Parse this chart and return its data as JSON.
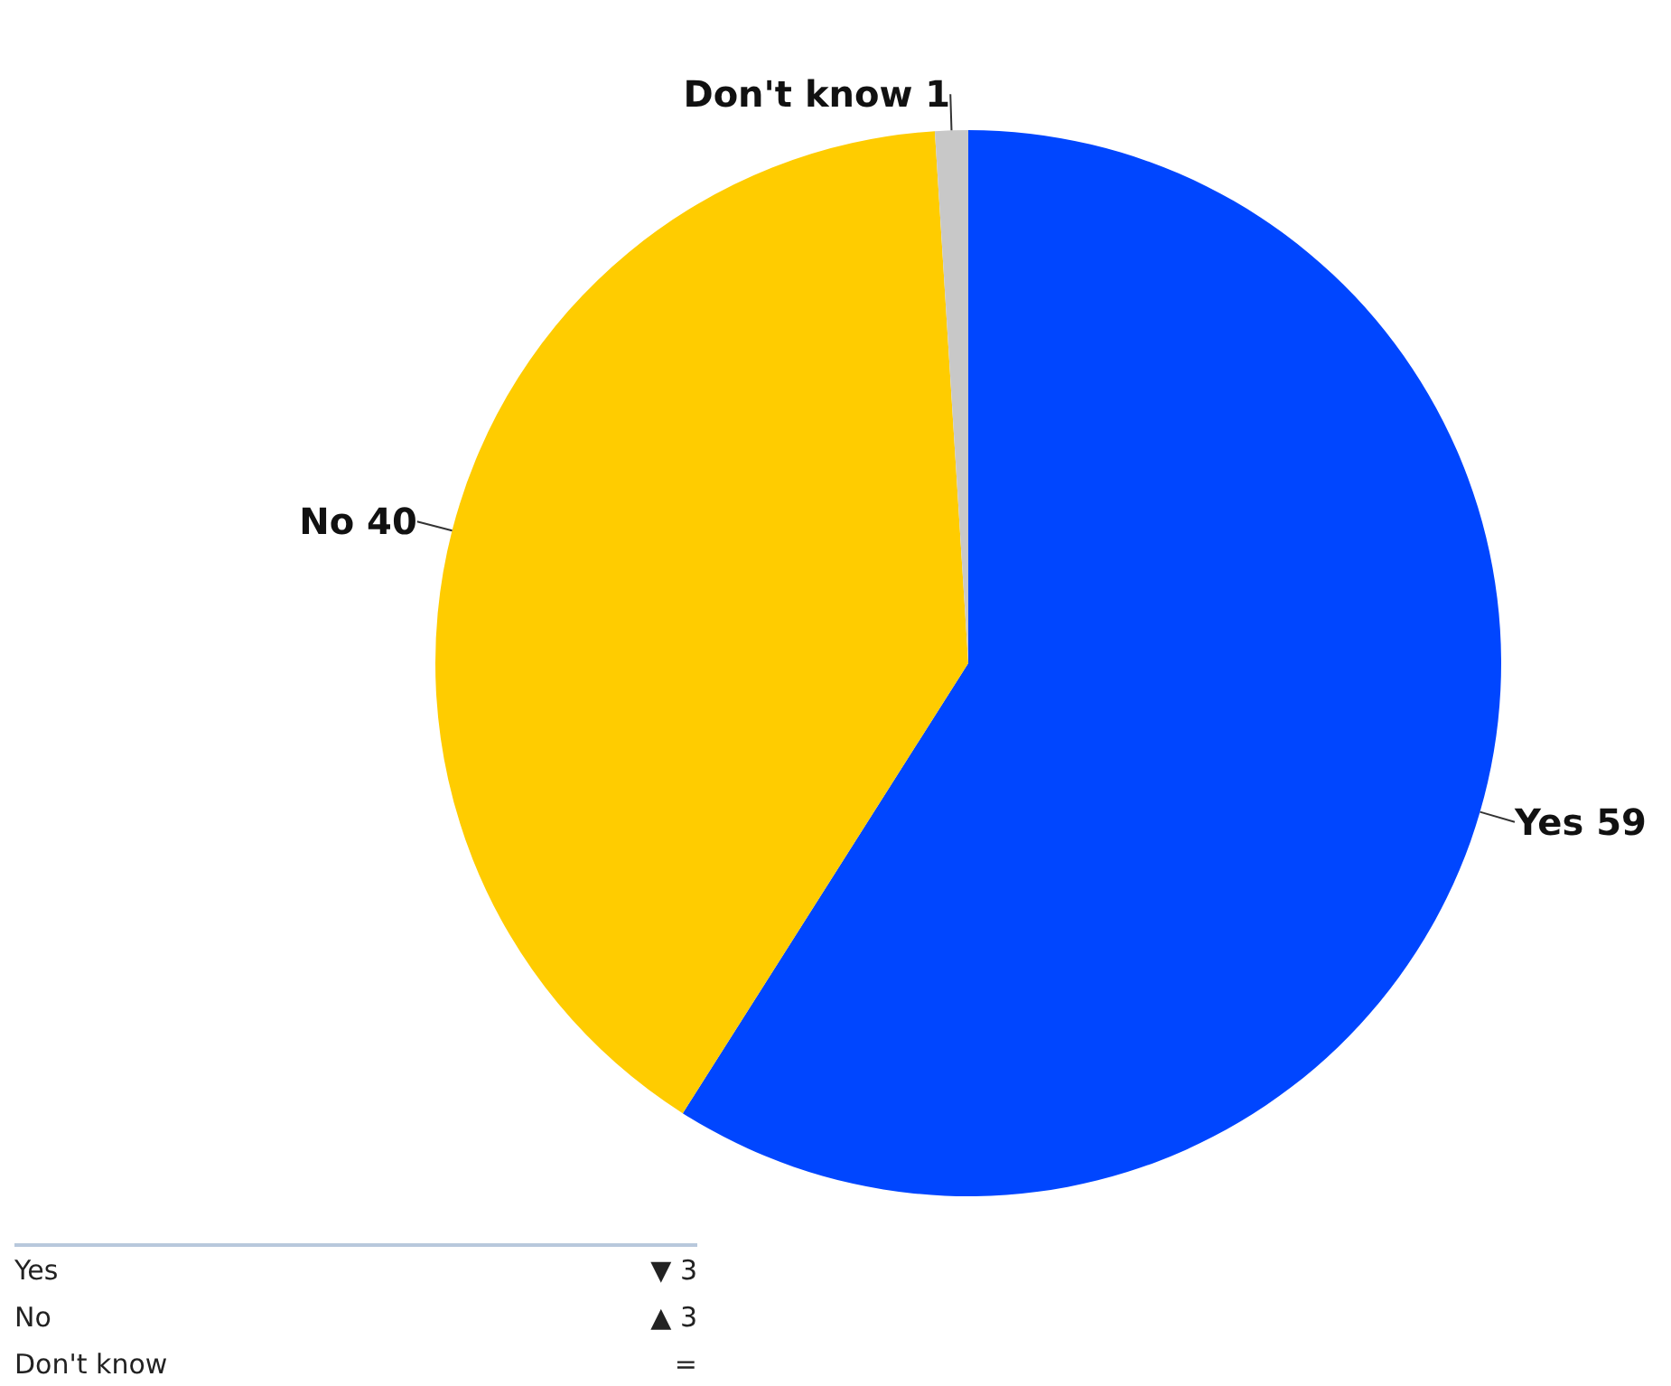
{
  "chart_data": {
    "type": "pie",
    "categories": [
      "Yes",
      "No",
      "Don't know"
    ],
    "values": [
      59,
      40,
      1
    ],
    "colors": [
      "#0046ff",
      "#ffcc00",
      "#c8c8c8"
    ],
    "data_labels": true,
    "annotations": [
      "▼ 3",
      "▲ 3",
      "="
    ]
  }
}
